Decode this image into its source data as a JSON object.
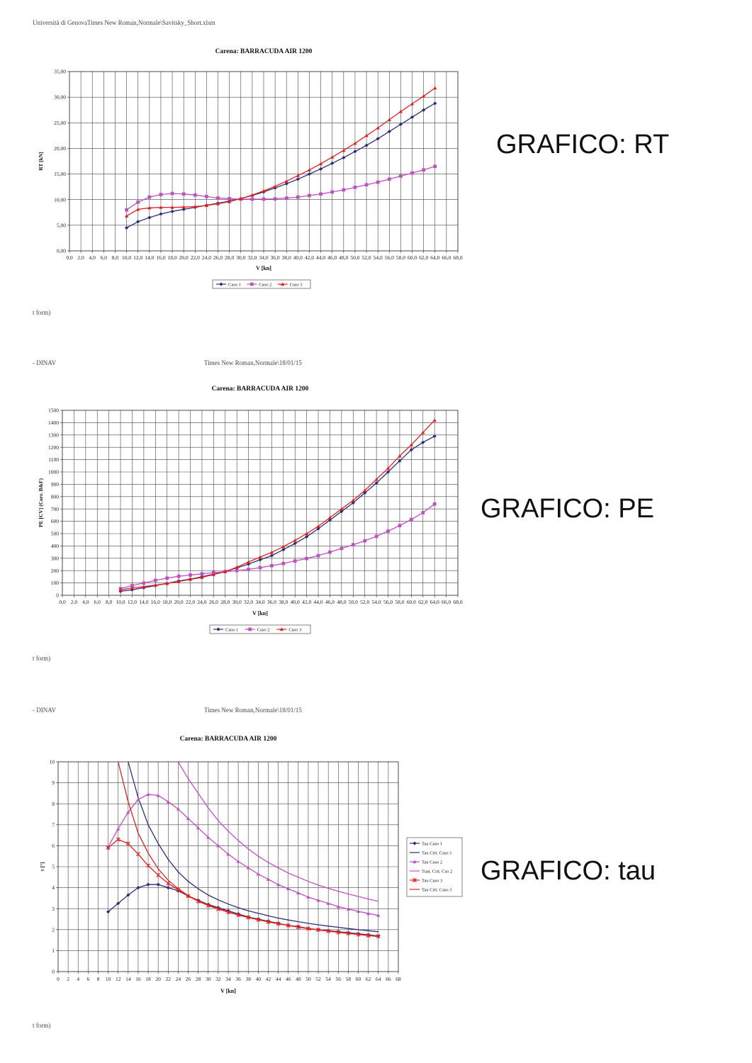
{
  "header": {
    "top_text": "Università di GenovaTimes New Roman,Normale\\Savitsky_Short.xlsm",
    "footer_1": "t form)",
    "dinav_2": "- DINAV",
    "font_2": "Times New Roman,Normale\\18/01/15",
    "footer_2": "t form)",
    "dinav_3": "- DINAV",
    "font_3": "Times New Roman,Normale\\18/01/15",
    "footer_3": "t form)"
  },
  "labels": {
    "rt": "GRAFICO: RT",
    "pe": "GRAFICO: PE",
    "tau": "GRAFICO: tau"
  },
  "chart_data": [
    {
      "type": "line",
      "title": "Carena: BARRACUDA AIR 1200",
      "xlabel": "V [kn]",
      "ylabel": "RT [kN]",
      "xlim": [
        0,
        68
      ],
      "ylim": [
        0,
        35
      ],
      "x_ticks": [
        "0,0",
        "2,0",
        "4,0",
        "6,0",
        "8,0",
        "10,0",
        "12,0",
        "14,0",
        "16,0",
        "18,0",
        "20,0",
        "22,0",
        "24,0",
        "26,0",
        "28,0",
        "30,0",
        "32,0",
        "34,0",
        "36,0",
        "38,0",
        "40,0",
        "42,0",
        "44,0",
        "46,0",
        "48,0",
        "50,0",
        "52,0",
        "54,0",
        "56,0",
        "58,0",
        "60,0",
        "62,0",
        "64,0",
        "66,0",
        "68,0"
      ],
      "y_ticks": [
        "0,00",
        "5,00",
        "10,00",
        "15,00",
        "20,00",
        "25,00",
        "30,00",
        "35,00"
      ],
      "grid": true,
      "legend": "bottom",
      "x": [
        10,
        12,
        14,
        16,
        18,
        20,
        22,
        24,
        26,
        28,
        30,
        32,
        34,
        36,
        38,
        40,
        42,
        44,
        46,
        48,
        50,
        52,
        54,
        56,
        58,
        60,
        62,
        64
      ],
      "series": [
        {
          "name": "Caso 1",
          "color": "#2b2e7a",
          "marker": "diamond",
          "values": [
            4.5,
            5.7,
            6.5,
            7.2,
            7.7,
            8.1,
            8.5,
            8.9,
            9.3,
            9.7,
            10.2,
            10.8,
            11.5,
            12.3,
            13.1,
            14.0,
            15.0,
            16.0,
            17.1,
            18.2,
            19.4,
            20.6,
            21.9,
            23.3,
            24.7,
            26.1,
            27.5,
            28.8
          ]
        },
        {
          "name": "Caso 2",
          "color": "#c04fc4",
          "marker": "square",
          "values": [
            8.0,
            9.5,
            10.5,
            11.0,
            11.2,
            11.1,
            10.9,
            10.6,
            10.3,
            10.2,
            10.1,
            10.1,
            10.1,
            10.15,
            10.3,
            10.5,
            10.8,
            11.1,
            11.5,
            11.9,
            12.4,
            12.9,
            13.4,
            14.0,
            14.6,
            15.2,
            15.8,
            16.5
          ]
        },
        {
          "name": "Caso 3",
          "color": "#e02020",
          "marker": "triangle",
          "values": [
            6.8,
            8.1,
            8.4,
            8.5,
            8.5,
            8.55,
            8.65,
            8.85,
            9.2,
            9.6,
            10.2,
            10.9,
            11.7,
            12.6,
            13.6,
            14.7,
            15.8,
            17.0,
            18.3,
            19.6,
            21.0,
            22.5,
            24.0,
            25.6,
            27.2,
            28.7,
            30.2,
            31.8
          ]
        }
      ]
    },
    {
      "type": "line",
      "title": "Carena: BARRACUDA AIR 1200",
      "xlabel": "V [kn]",
      "ylabel": "PE [CV] (Corr. B&F)",
      "xlim": [
        0,
        68
      ],
      "ylim": [
        0,
        1500
      ],
      "x_ticks": [
        "0,0",
        "2,0",
        "4,0",
        "6,0",
        "8,0",
        "10,0",
        "12,0",
        "14,0",
        "16,0",
        "18,0",
        "20,0",
        "22,0",
        "24,0",
        "26,0",
        "28,0",
        "30,0",
        "32,0",
        "34,0",
        "36,0",
        "38,0",
        "40,0",
        "42,0",
        "44,0",
        "46,0",
        "48,0",
        "50,0",
        "52,0",
        "54,0",
        "56,0",
        "58,0",
        "60,0",
        "62,0",
        "64,0",
        "66,0",
        "68,0"
      ],
      "y_ticks": [
        "0",
        "100",
        "200",
        "300",
        "400",
        "500",
        "600",
        "700",
        "800",
        "900",
        "1000",
        "1100",
        "1200",
        "1300",
        "1400",
        "1500"
      ],
      "grid": true,
      "legend": "bottom",
      "x": [
        10,
        12,
        14,
        16,
        18,
        20,
        22,
        24,
        26,
        28,
        30,
        32,
        34,
        36,
        38,
        40,
        42,
        44,
        46,
        48,
        50,
        52,
        54,
        56,
        58,
        60,
        62,
        64
      ],
      "series": [
        {
          "name": "Caso 1",
          "color": "#2b2e7a",
          "marker": "diamond",
          "values": [
            32,
            45,
            61,
            78,
            96,
            116,
            131,
            150,
            172,
            195,
            222,
            253,
            288,
            322,
            370,
            420,
            475,
            540,
            610,
            680,
            750,
            830,
            910,
            1000,
            1090,
            1180,
            1240,
            1290
          ]
        },
        {
          "name": "Caso 2",
          "color": "#c04fc4",
          "marker": "square",
          "values": [
            54,
            79,
            99,
            121,
            139,
            154,
            164,
            174,
            184,
            192,
            200,
            210,
            224,
            240,
            258,
            278,
            298,
            322,
            350,
            380,
            410,
            442,
            478,
            520,
            565,
            615,
            670,
            740
          ]
        },
        {
          "name": "Caso 3",
          "color": "#e02020",
          "marker": "triangle",
          "values": [
            44,
            60,
            70,
            83,
            95,
            112,
            129,
            145,
            168,
            192,
            228,
            270,
            310,
            348,
            395,
            445,
            500,
            560,
            630,
            700,
            770,
            850,
            940,
            1030,
            1130,
            1220,
            1320,
            1420
          ]
        }
      ]
    },
    {
      "type": "line",
      "title": "Carena: BARRACUDA AIR 1200",
      "xlabel": "V [kn]",
      "ylabel": "τ [°]",
      "xlim": [
        0,
        68
      ],
      "ylim": [
        0,
        10
      ],
      "x_ticks": [
        "0",
        "2",
        "4",
        "6",
        "8",
        "10",
        "12",
        "14",
        "16",
        "18",
        "20",
        "22",
        "24",
        "26",
        "28",
        "30",
        "32",
        "34",
        "36",
        "38",
        "40",
        "42",
        "44",
        "46",
        "48",
        "50",
        "52",
        "54",
        "56",
        "58",
        "60",
        "62",
        "64",
        "66",
        "68"
      ],
      "y_ticks": [
        "0",
        "1",
        "2",
        "3",
        "4",
        "5",
        "6",
        "7",
        "8",
        "9",
        "10"
      ],
      "grid": true,
      "legend": "right",
      "x": [
        10,
        12,
        14,
        16,
        18,
        20,
        22,
        24,
        26,
        28,
        30,
        32,
        34,
        36,
        38,
        40,
        42,
        44,
        46,
        48,
        50,
        52,
        54,
        56,
        58,
        60,
        62,
        64
      ],
      "series": [
        {
          "name": "Tau Caso 1",
          "color": "#2b2e7a",
          "marker": "diamond",
          "values": [
            2.85,
            3.25,
            3.65,
            4.0,
            4.15,
            4.15,
            4.0,
            3.85,
            3.6,
            3.4,
            3.2,
            3.05,
            2.9,
            2.75,
            2.6,
            2.5,
            2.4,
            2.3,
            2.2,
            2.15,
            2.05,
            2.0,
            1.95,
            1.9,
            1.85,
            1.8,
            1.75,
            1.7
          ]
        },
        {
          "name": "Tau Crit. Caso 1",
          "color": "#2b2e7a",
          "marker": "none",
          "values": [
            null,
            null,
            10.0,
            8.3,
            7.0,
            6.1,
            5.35,
            4.75,
            4.3,
            3.95,
            3.65,
            3.42,
            3.22,
            3.05,
            2.9,
            2.78,
            2.66,
            2.55,
            2.46,
            2.38,
            2.3,
            2.23,
            2.17,
            2.11,
            2.05,
            2.0,
            1.95,
            1.9
          ]
        },
        {
          "name": "Tau Caso 2",
          "color": "#c04fc4",
          "marker": "triangle",
          "values": [
            5.95,
            6.8,
            7.6,
            8.2,
            8.45,
            8.4,
            8.1,
            7.75,
            7.3,
            6.85,
            6.4,
            6.0,
            5.6,
            5.25,
            4.95,
            4.65,
            4.4,
            4.15,
            3.95,
            3.75,
            3.55,
            3.4,
            3.25,
            3.1,
            2.98,
            2.87,
            2.77,
            2.68
          ]
        },
        {
          "name": "Tuat. Crit. Cso 2",
          "color": "#c04fc4",
          "marker": "none",
          "values": [
            null,
            null,
            null,
            null,
            null,
            null,
            null,
            10.0,
            9.2,
            8.5,
            7.8,
            7.2,
            6.7,
            6.25,
            5.85,
            5.5,
            5.2,
            4.95,
            4.7,
            4.5,
            4.3,
            4.12,
            3.97,
            3.83,
            3.7,
            3.58,
            3.46,
            3.35
          ]
        },
        {
          "name": "Tau Caso 3",
          "color": "#e02020",
          "marker": "star",
          "values": [
            5.9,
            6.3,
            6.1,
            5.6,
            5.05,
            4.6,
            4.2,
            3.9,
            3.6,
            3.35,
            3.15,
            2.98,
            2.83,
            2.7,
            2.58,
            2.47,
            2.37,
            2.28,
            2.2,
            2.12,
            2.05,
            1.99,
            1.93,
            1.87,
            1.82,
            1.77,
            1.72,
            1.68
          ]
        },
        {
          "name": "Tau Crit. Caso 3",
          "color": "#e02020",
          "marker": "none",
          "values": [
            null,
            10.0,
            8.1,
            6.6,
            5.65,
            4.9,
            4.35,
            3.95,
            3.62,
            3.37,
            3.17,
            3.0,
            2.84,
            2.7,
            2.58,
            2.47,
            2.37,
            2.28,
            2.2,
            2.12,
            2.05,
            1.99,
            1.93,
            1.87,
            1.82,
            1.77,
            1.72,
            1.67
          ]
        }
      ]
    }
  ]
}
